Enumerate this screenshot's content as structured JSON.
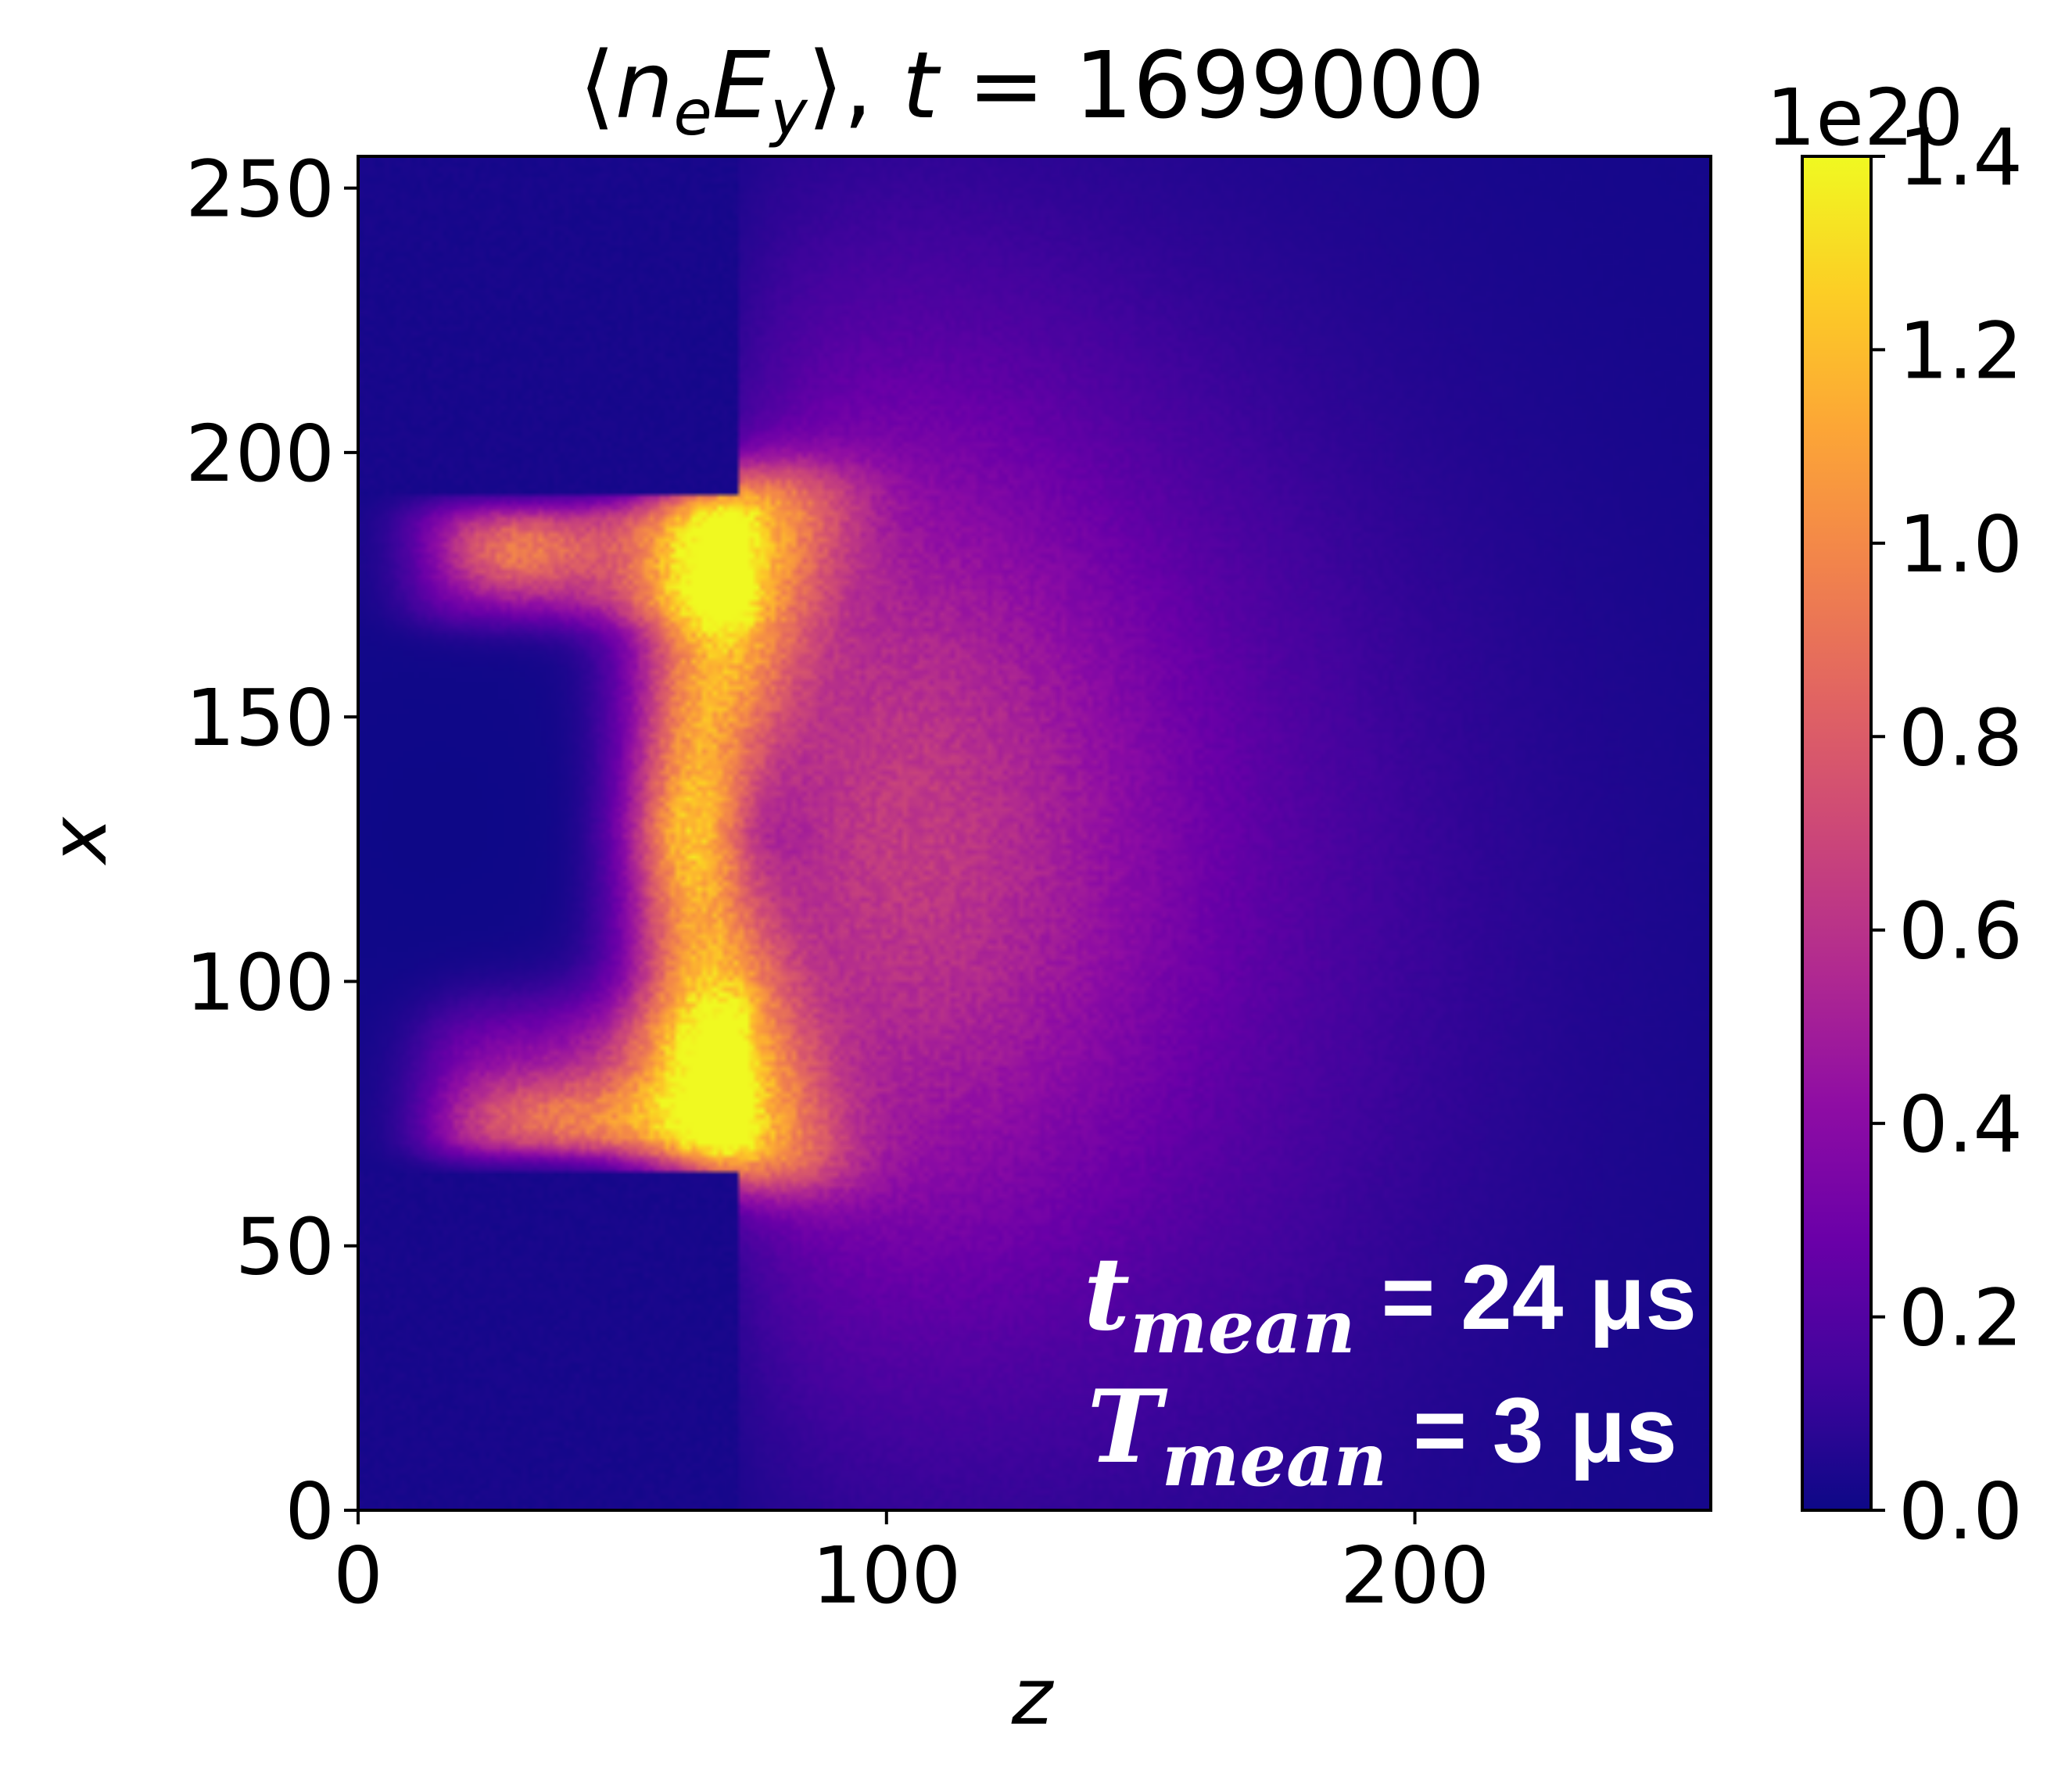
{
  "chart_data": {
    "type": "heatmap",
    "title_parts": {
      "lbracket": "⟨",
      "n": "n",
      "e": "e",
      "E": "E",
      "y": "y",
      "rbracket": "⟩",
      "sep": ", ",
      "t": "t",
      "eq": " = ",
      "value": "1699000"
    },
    "xlabel": "z",
    "ylabel": "x",
    "xlim": [
      0,
      256
    ],
    "ylim": [
      0,
      256
    ],
    "x_ticks": [
      0,
      100,
      200
    ],
    "x_tick_labels": [
      "0",
      "100",
      "200"
    ],
    "y_ticks": [
      0,
      50,
      100,
      150,
      200,
      250
    ],
    "y_tick_labels": [
      "0",
      "50",
      "100",
      "150",
      "200",
      "250"
    ],
    "colormap": "plasma",
    "colorbar": {
      "multiplier": "1e20",
      "range": [
        0.0,
        1.4
      ],
      "ticks": [
        0.0,
        0.2,
        0.4,
        0.6,
        0.8,
        1.0,
        1.2,
        1.4
      ],
      "tick_labels": [
        "0.0",
        "0.2",
        "0.4",
        "0.6",
        "0.8",
        "1.0",
        "1.2",
        "1.4"
      ]
    },
    "annotation": {
      "line1": {
        "symbol": "t",
        "sub": "mean",
        "text": " = 24 μs"
      },
      "line2": {
        "symbol": "T",
        "sub": "mean",
        "text": " = 3 μs"
      }
    },
    "field_features": {
      "background_value": 0.02,
      "upper_lobe": {
        "z_range": [
          10,
          72
        ],
        "x_range": [
          170,
          190
        ],
        "peak": 1.35
      },
      "lower_lobe": {
        "z_range": [
          13,
          72
        ],
        "x_range": [
          66,
          100
        ],
        "peak": 1.22
      },
      "central_plume": {
        "z_center": 70,
        "x_range": [
          65,
          195
        ],
        "peak": 1.28
      }
    }
  }
}
